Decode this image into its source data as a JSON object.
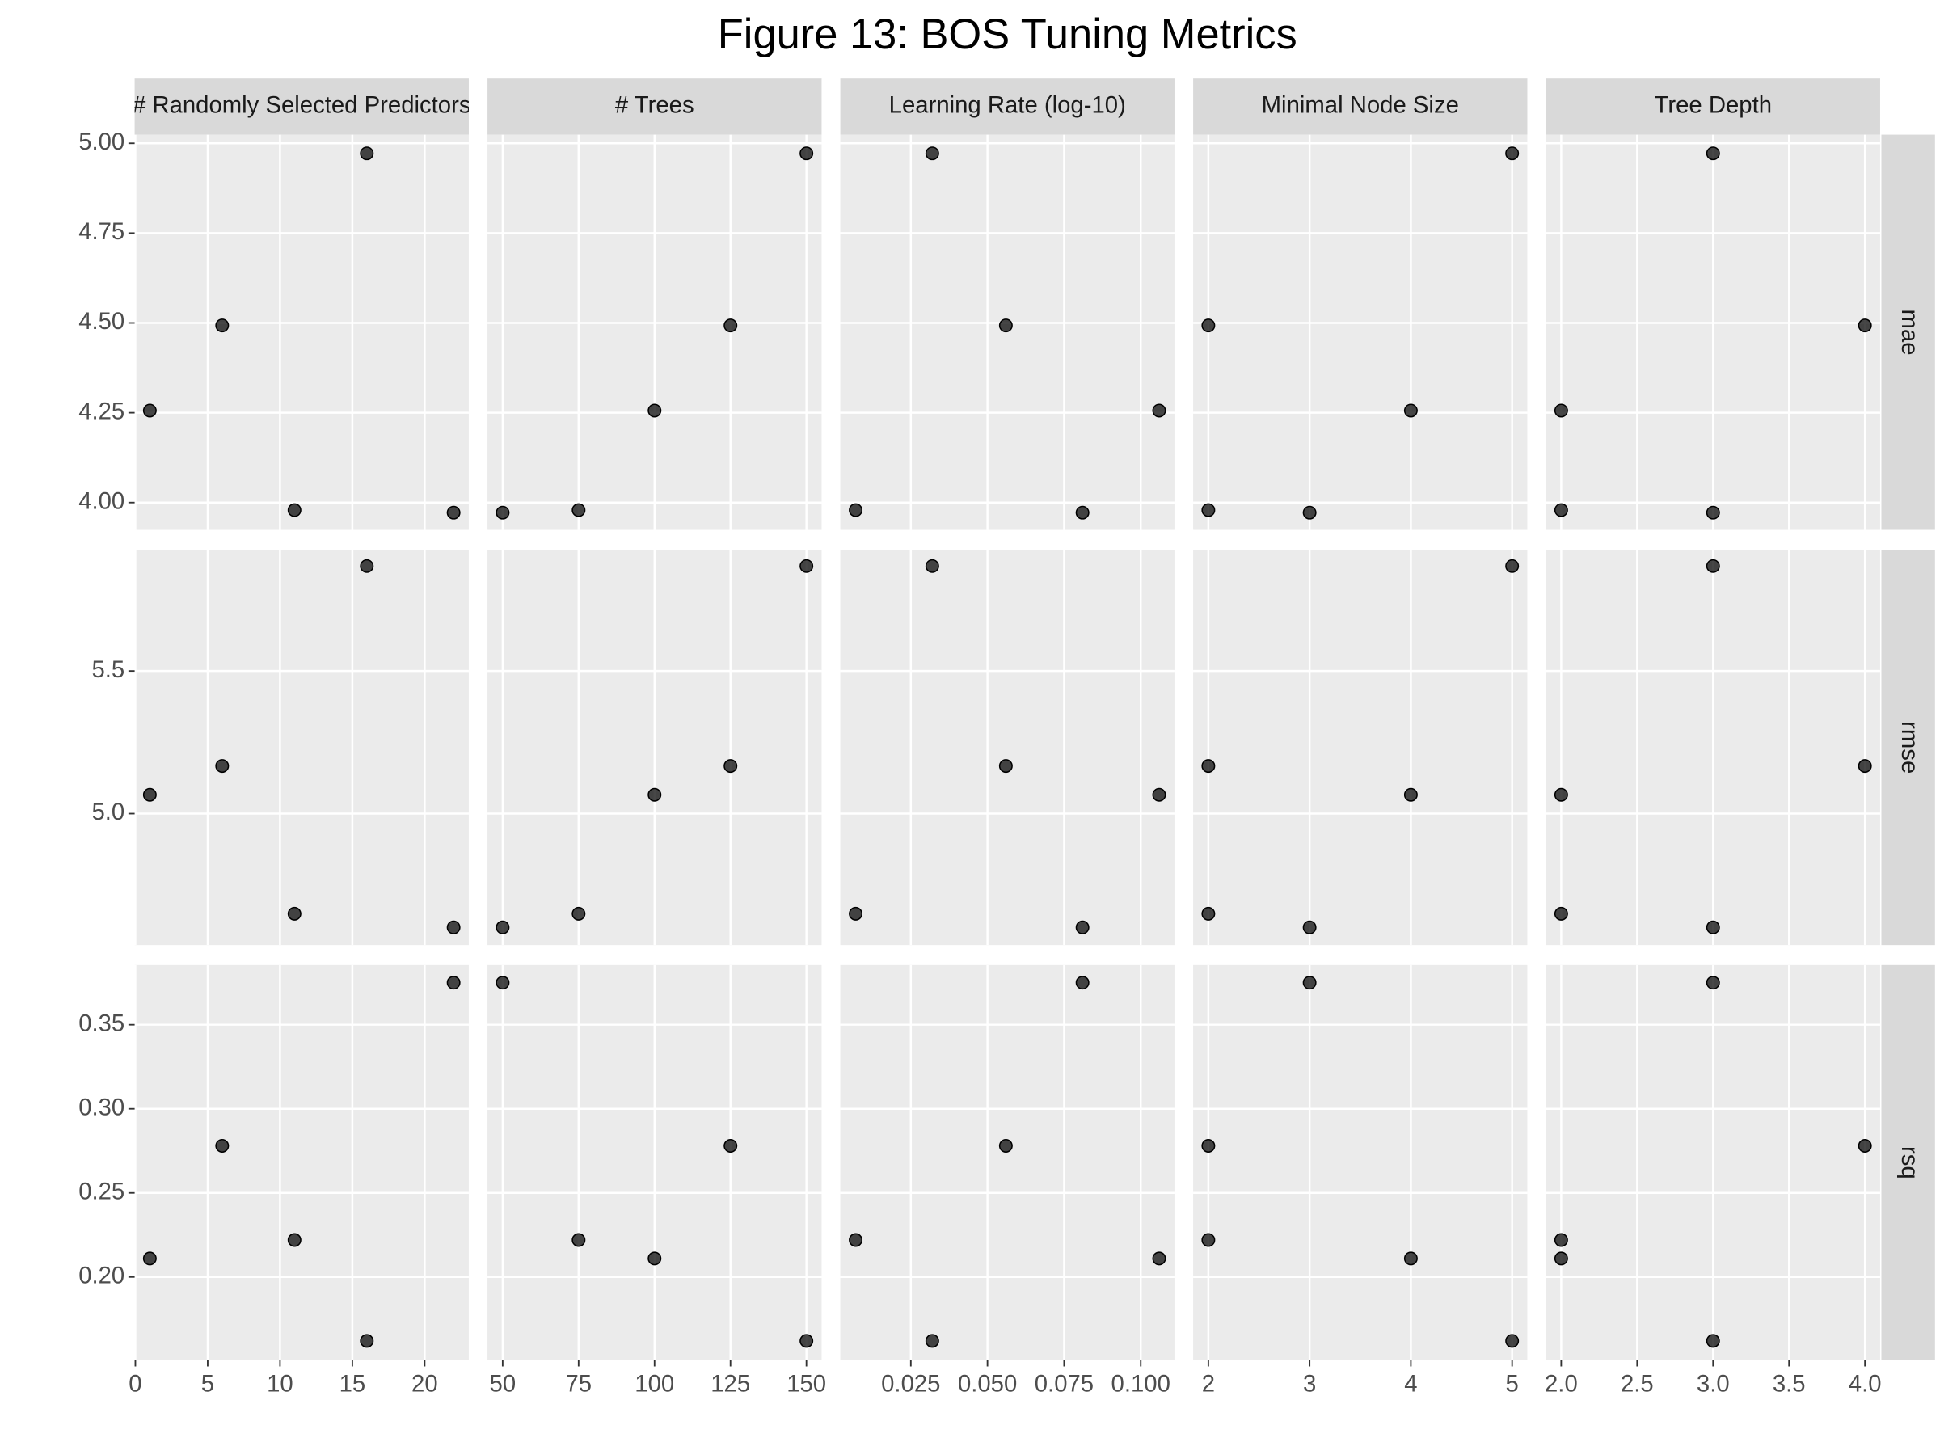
{
  "chart_data": {
    "type": "scatter",
    "title": "Figure 13: BOS Tuning Metrics",
    "color": "#000000",
    "grid": true,
    "columns": [
      {
        "name": "# Randomly Selected Predictors",
        "xlim": [
          -0.05,
          23.05
        ],
        "xticks": [
          0,
          5,
          10,
          15,
          20
        ],
        "x": [
          1,
          6,
          11,
          16,
          22
        ]
      },
      {
        "name": "# Trees",
        "xlim": [
          45,
          155
        ],
        "xticks": [
          50,
          75,
          100,
          125,
          150
        ],
        "x": [
          100,
          125,
          75,
          150,
          50
        ]
      },
      {
        "name": "Learning Rate (log-10)",
        "xlim": [
          0.002,
          0.111
        ],
        "xticks": [
          0.025,
          {
            "value": 0.05,
            "label": "0.050"
          },
          0.075,
          {
            "value": 0.1,
            "label": "0.100"
          }
        ],
        "x": [
          0.106,
          0.056,
          0.007,
          0.032,
          0.081
        ]
      },
      {
        "name": "Minimal Node Size",
        "xlim": [
          1.85,
          5.15
        ],
        "xticks": [
          2,
          3,
          4,
          5
        ],
        "x": [
          4,
          2,
          2,
          5,
          3
        ]
      },
      {
        "name": "Tree Depth",
        "xlim": [
          1.9,
          4.1
        ],
        "xticks": [
          {
            "value": 2,
            "label": "2.0"
          },
          2.5,
          {
            "value": 3,
            "label": "3.0"
          },
          3.5,
          {
            "value": 4,
            "label": "4.0"
          }
        ],
        "x": [
          2,
          4,
          2,
          3,
          3
        ]
      }
    ],
    "rows": [
      {
        "name": "mae",
        "ylim": [
          3.924,
          5.024
        ],
        "yticks": [
          {
            "value": 4,
            "label": "4.00"
          },
          4.25,
          {
            "value": 4.5,
            "label": "4.50"
          },
          4.75,
          {
            "value": 5,
            "label": "5.00"
          }
        ],
        "y": [
          4.256,
          4.493,
          3.979,
          4.972,
          3.972
        ]
      },
      {
        "name": "rmse",
        "ylim": [
          4.539,
          5.925
        ],
        "yticks": [
          {
            "value": 5,
            "label": "5.0"
          },
          5.5
        ],
        "y": [
          5.066,
          5.167,
          4.649,
          5.868,
          4.601
        ]
      },
      {
        "name": "rsq",
        "ylim": [
          0.1505,
          0.3855
        ],
        "yticks": [
          {
            "value": 0.2,
            "label": "0.20"
          },
          0.25,
          {
            "value": 0.3,
            "label": "0.30"
          },
          0.35
        ],
        "y": [
          0.211,
          0.278,
          0.222,
          0.162,
          0.375
        ]
      }
    ]
  }
}
